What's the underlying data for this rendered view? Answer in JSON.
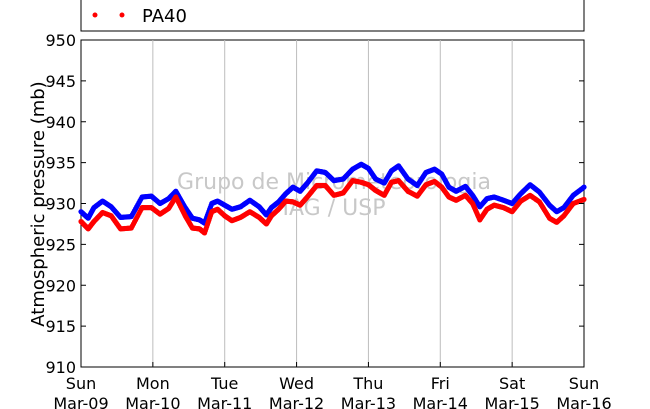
{
  "chart_data": {
    "type": "scatter",
    "ylabel": "Atmospheric pressure (mb)",
    "ylim": [
      910,
      950
    ],
    "y_ticks": [
      910,
      915,
      920,
      925,
      930,
      935,
      940,
      945,
      950
    ],
    "x_ticks": [
      {
        "day": "Sun",
        "date": "Mar-09"
      },
      {
        "day": "Mon",
        "date": "Mar-10"
      },
      {
        "day": "Tue",
        "date": "Mar-11"
      },
      {
        "day": "Wed",
        "date": "Mar-12"
      },
      {
        "day": "Thu",
        "date": "Mar-13"
      },
      {
        "day": "Fri",
        "date": "Mar-14"
      },
      {
        "day": "Sat",
        "date": "Mar-15"
      },
      {
        "day": "Sun",
        "date": "Mar-16"
      }
    ],
    "xlim_days": [
      0,
      7
    ],
    "grid": "vertical",
    "legend_visible": [
      "PA40"
    ],
    "watermark": [
      "Grupo de Micrometeorologia",
      "IAG / USP"
    ],
    "series": [
      {
        "color": "#0000ff",
        "points": [
          [
            0.0,
            929.0
          ],
          [
            0.1,
            928.2
          ],
          [
            0.18,
            929.5
          ],
          [
            0.3,
            930.3
          ],
          [
            0.42,
            929.6
          ],
          [
            0.55,
            928.3
          ],
          [
            0.7,
            928.4
          ],
          [
            0.85,
            930.8
          ],
          [
            0.98,
            930.9
          ],
          [
            1.1,
            930.0
          ],
          [
            1.22,
            930.6
          ],
          [
            1.32,
            931.5
          ],
          [
            1.45,
            929.5
          ],
          [
            1.55,
            928.2
          ],
          [
            1.65,
            928.0
          ],
          [
            1.72,
            927.6
          ],
          [
            1.82,
            930.0
          ],
          [
            1.9,
            930.3
          ],
          [
            2.0,
            929.8
          ],
          [
            2.1,
            929.3
          ],
          [
            2.22,
            929.6
          ],
          [
            2.35,
            930.4
          ],
          [
            2.48,
            929.6
          ],
          [
            2.58,
            928.6
          ],
          [
            2.65,
            929.5
          ],
          [
            2.75,
            930.2
          ],
          [
            2.85,
            931.2
          ],
          [
            2.95,
            932.0
          ],
          [
            3.05,
            931.5
          ],
          [
            3.15,
            932.5
          ],
          [
            3.28,
            934.0
          ],
          [
            3.4,
            933.8
          ],
          [
            3.52,
            932.8
          ],
          [
            3.65,
            933.0
          ],
          [
            3.78,
            934.2
          ],
          [
            3.9,
            934.8
          ],
          [
            4.0,
            934.3
          ],
          [
            4.1,
            933.0
          ],
          [
            4.22,
            932.5
          ],
          [
            4.32,
            934.0
          ],
          [
            4.42,
            934.6
          ],
          [
            4.55,
            933.0
          ],
          [
            4.68,
            932.2
          ],
          [
            4.8,
            933.8
          ],
          [
            4.92,
            934.2
          ],
          [
            5.02,
            933.6
          ],
          [
            5.12,
            932.0
          ],
          [
            5.22,
            931.5
          ],
          [
            5.35,
            932.1
          ],
          [
            5.45,
            931.0
          ],
          [
            5.55,
            929.6
          ],
          [
            5.65,
            930.6
          ],
          [
            5.75,
            930.8
          ],
          [
            5.88,
            930.4
          ],
          [
            6.0,
            930.0
          ],
          [
            6.12,
            931.2
          ],
          [
            6.25,
            932.3
          ],
          [
            6.38,
            931.4
          ],
          [
            6.52,
            929.8
          ],
          [
            6.62,
            929.0
          ],
          [
            6.72,
            929.5
          ],
          [
            6.85,
            931.0
          ],
          [
            7.0,
            932.0
          ]
        ]
      },
      {
        "name": "PA40",
        "color": "#ff0000",
        "points": [
          [
            0.0,
            927.8
          ],
          [
            0.1,
            926.9
          ],
          [
            0.18,
            927.8
          ],
          [
            0.3,
            928.9
          ],
          [
            0.42,
            928.5
          ],
          [
            0.55,
            926.9
          ],
          [
            0.7,
            927.0
          ],
          [
            0.85,
            929.5
          ],
          [
            0.98,
            929.5
          ],
          [
            1.1,
            928.7
          ],
          [
            1.22,
            929.4
          ],
          [
            1.32,
            930.8
          ],
          [
            1.45,
            928.5
          ],
          [
            1.55,
            927.0
          ],
          [
            1.65,
            926.9
          ],
          [
            1.72,
            926.4
          ],
          [
            1.82,
            929.0
          ],
          [
            1.9,
            929.3
          ],
          [
            2.0,
            928.5
          ],
          [
            2.1,
            927.9
          ],
          [
            2.22,
            928.3
          ],
          [
            2.35,
            929.0
          ],
          [
            2.48,
            928.3
          ],
          [
            2.58,
            927.5
          ],
          [
            2.65,
            928.5
          ],
          [
            2.75,
            929.3
          ],
          [
            2.85,
            930.3
          ],
          [
            2.95,
            930.2
          ],
          [
            3.05,
            929.8
          ],
          [
            3.15,
            930.8
          ],
          [
            3.28,
            932.2
          ],
          [
            3.4,
            932.2
          ],
          [
            3.52,
            931.0
          ],
          [
            3.65,
            931.3
          ],
          [
            3.78,
            932.8
          ],
          [
            3.9,
            932.6
          ],
          [
            4.0,
            932.3
          ],
          [
            4.1,
            931.6
          ],
          [
            4.22,
            931.0
          ],
          [
            4.32,
            932.6
          ],
          [
            4.42,
            932.8
          ],
          [
            4.55,
            931.5
          ],
          [
            4.68,
            930.9
          ],
          [
            4.8,
            932.3
          ],
          [
            4.92,
            932.7
          ],
          [
            5.02,
            932.0
          ],
          [
            5.12,
            930.8
          ],
          [
            5.22,
            930.4
          ],
          [
            5.35,
            931.0
          ],
          [
            5.45,
            930.0
          ],
          [
            5.55,
            928.0
          ],
          [
            5.65,
            929.3
          ],
          [
            5.75,
            929.8
          ],
          [
            5.88,
            929.5
          ],
          [
            6.0,
            929.0
          ],
          [
            6.12,
            930.3
          ],
          [
            6.25,
            931.0
          ],
          [
            6.38,
            930.2
          ],
          [
            6.52,
            928.2
          ],
          [
            6.62,
            927.7
          ],
          [
            6.72,
            928.5
          ],
          [
            6.85,
            930.0
          ],
          [
            7.0,
            930.5
          ]
        ]
      }
    ]
  }
}
